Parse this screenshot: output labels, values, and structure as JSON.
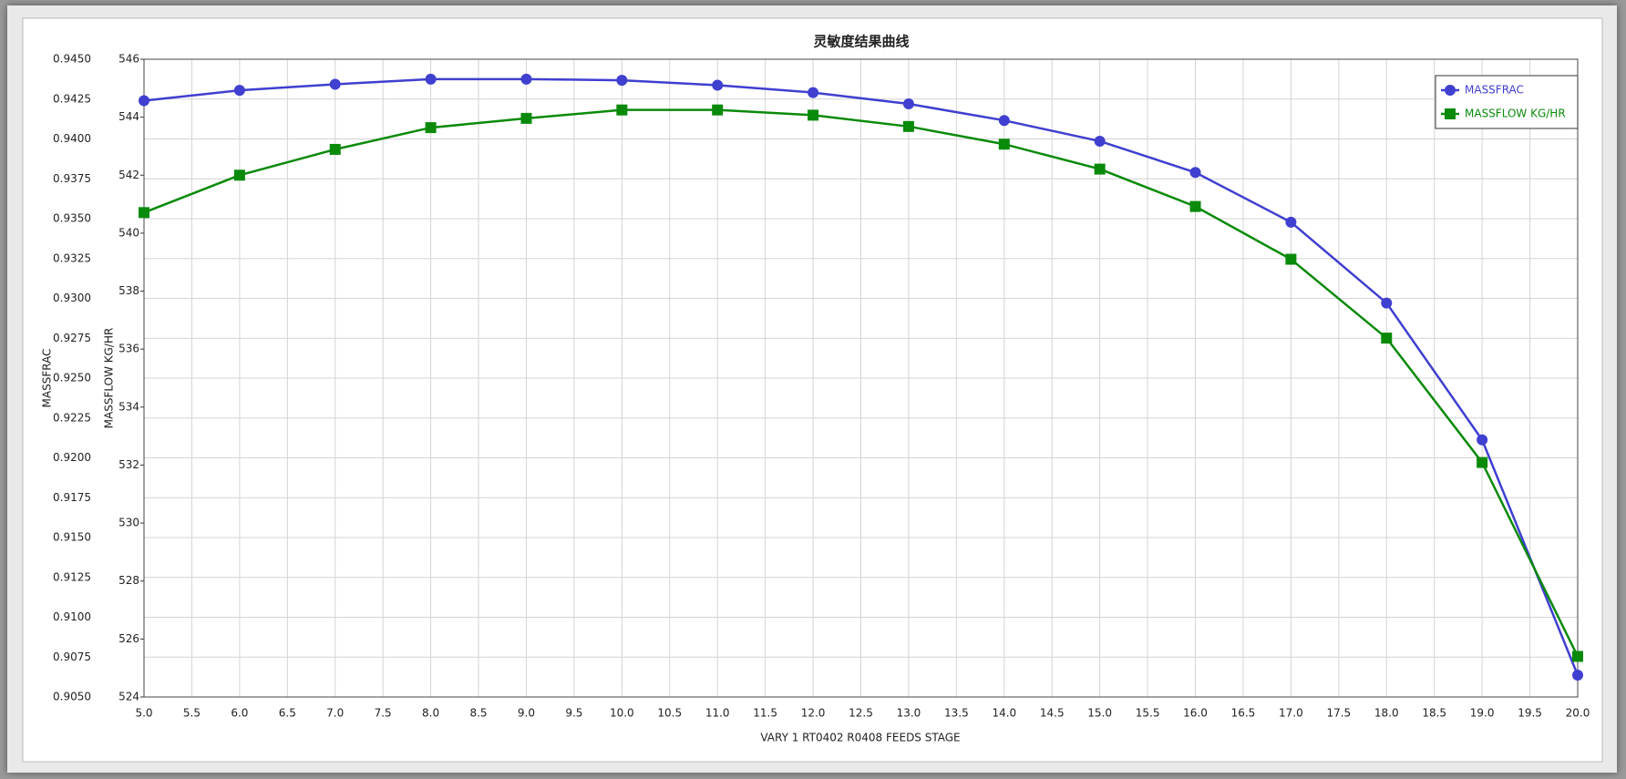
{
  "chart_data": {
    "type": "line",
    "title": "灵敏度结果曲线",
    "xlabel": "VARY   1 RT0402 R0408 FEEDS STAGE",
    "ylabel": "MASSFRAC",
    "y2label": "MASSFLOW KG/HR",
    "x": [
      5,
      6,
      7,
      8,
      9,
      10,
      11,
      12,
      13,
      14,
      15,
      16,
      17,
      18,
      19,
      20
    ],
    "xlim": [
      5,
      20
    ],
    "xticks": [
      {
        "value": 5,
        "label": "5.0"
      },
      {
        "value": 5.5,
        "label": "5.5"
      },
      {
        "value": 6,
        "label": "6.0"
      },
      {
        "value": 6.5,
        "label": "6.5"
      },
      {
        "value": 7,
        "label": "7.0"
      },
      {
        "value": 7.5,
        "label": "7.5"
      },
      {
        "value": 8,
        "label": "8.0"
      },
      {
        "value": 8.5,
        "label": "8.5"
      },
      {
        "value": 9,
        "label": "9.0"
      },
      {
        "value": 9.5,
        "label": "9.5"
      },
      {
        "value": 10,
        "label": "10.0"
      },
      {
        "value": 10.5,
        "label": "10.5"
      },
      {
        "value": 11,
        "label": "11.0"
      },
      {
        "value": 11.5,
        "label": "11.5"
      },
      {
        "value": 12,
        "label": "12.0"
      },
      {
        "value": 12.5,
        "label": "12.5"
      },
      {
        "value": 13,
        "label": "13.0"
      },
      {
        "value": 13.5,
        "label": "13.5"
      },
      {
        "value": 14,
        "label": "14.0"
      },
      {
        "value": 14.5,
        "label": "14.5"
      },
      {
        "value": 15,
        "label": "15.0"
      },
      {
        "value": 15.5,
        "label": "15.5"
      },
      {
        "value": 16,
        "label": "16.0"
      },
      {
        "value": 16.5,
        "label": "16.5"
      },
      {
        "value": 17,
        "label": "17.0"
      },
      {
        "value": 17.5,
        "label": "17.5"
      },
      {
        "value": 18,
        "label": "18.0"
      },
      {
        "value": 18.5,
        "label": "18.5"
      },
      {
        "value": 19,
        "label": "19.0"
      },
      {
        "value": 19.5,
        "label": "19.5"
      },
      {
        "value": 20,
        "label": "20.0"
      }
    ],
    "ylim": [
      0.905,
      0.945
    ],
    "yticks": [
      {
        "value": 0.905,
        "label": "0.9050"
      },
      {
        "value": 0.9075,
        "label": "0.9075"
      },
      {
        "value": 0.91,
        "label": "0.9100"
      },
      {
        "value": 0.9125,
        "label": "0.9125"
      },
      {
        "value": 0.915,
        "label": "0.9150"
      },
      {
        "value": 0.9175,
        "label": "0.9175"
      },
      {
        "value": 0.92,
        "label": "0.9200"
      },
      {
        "value": 0.9225,
        "label": "0.9225"
      },
      {
        "value": 0.925,
        "label": "0.9250"
      },
      {
        "value": 0.9275,
        "label": "0.9275"
      },
      {
        "value": 0.93,
        "label": "0.9300"
      },
      {
        "value": 0.9325,
        "label": "0.9325"
      },
      {
        "value": 0.935,
        "label": "0.9350"
      },
      {
        "value": 0.9375,
        "label": "0.9375"
      },
      {
        "value": 0.94,
        "label": "0.9400"
      },
      {
        "value": 0.9425,
        "label": "0.9425"
      },
      {
        "value": 0.945,
        "label": "0.9450"
      }
    ],
    "y2lim": [
      524,
      546
    ],
    "y2ticks": [
      524,
      526,
      528,
      530,
      532,
      534,
      536,
      538,
      540,
      542,
      544,
      546
    ],
    "grid": true,
    "legend": "upper right",
    "series": [
      {
        "name": "MASSFRAC",
        "color": "#3f3fd0",
        "marker": "circle",
        "values": [
          0.9424,
          0.94305,
          0.94343,
          0.94375,
          0.94375,
          0.94368,
          0.94337,
          0.94291,
          0.9422,
          0.94116,
          0.93986,
          0.9379,
          0.93478,
          0.92971,
          0.92113,
          0.90637
        ]
      },
      {
        "name": "MASSFLOW KG/HR",
        "color": "#0a8a0a",
        "marker": "square",
        "axis": "y2",
        "values": [
          540.71,
          542.0,
          542.89,
          543.64,
          543.96,
          544.25,
          544.25,
          544.07,
          543.68,
          543.07,
          542.21,
          540.92,
          539.1,
          536.38,
          532.09,
          525.4
        ]
      }
    ]
  }
}
